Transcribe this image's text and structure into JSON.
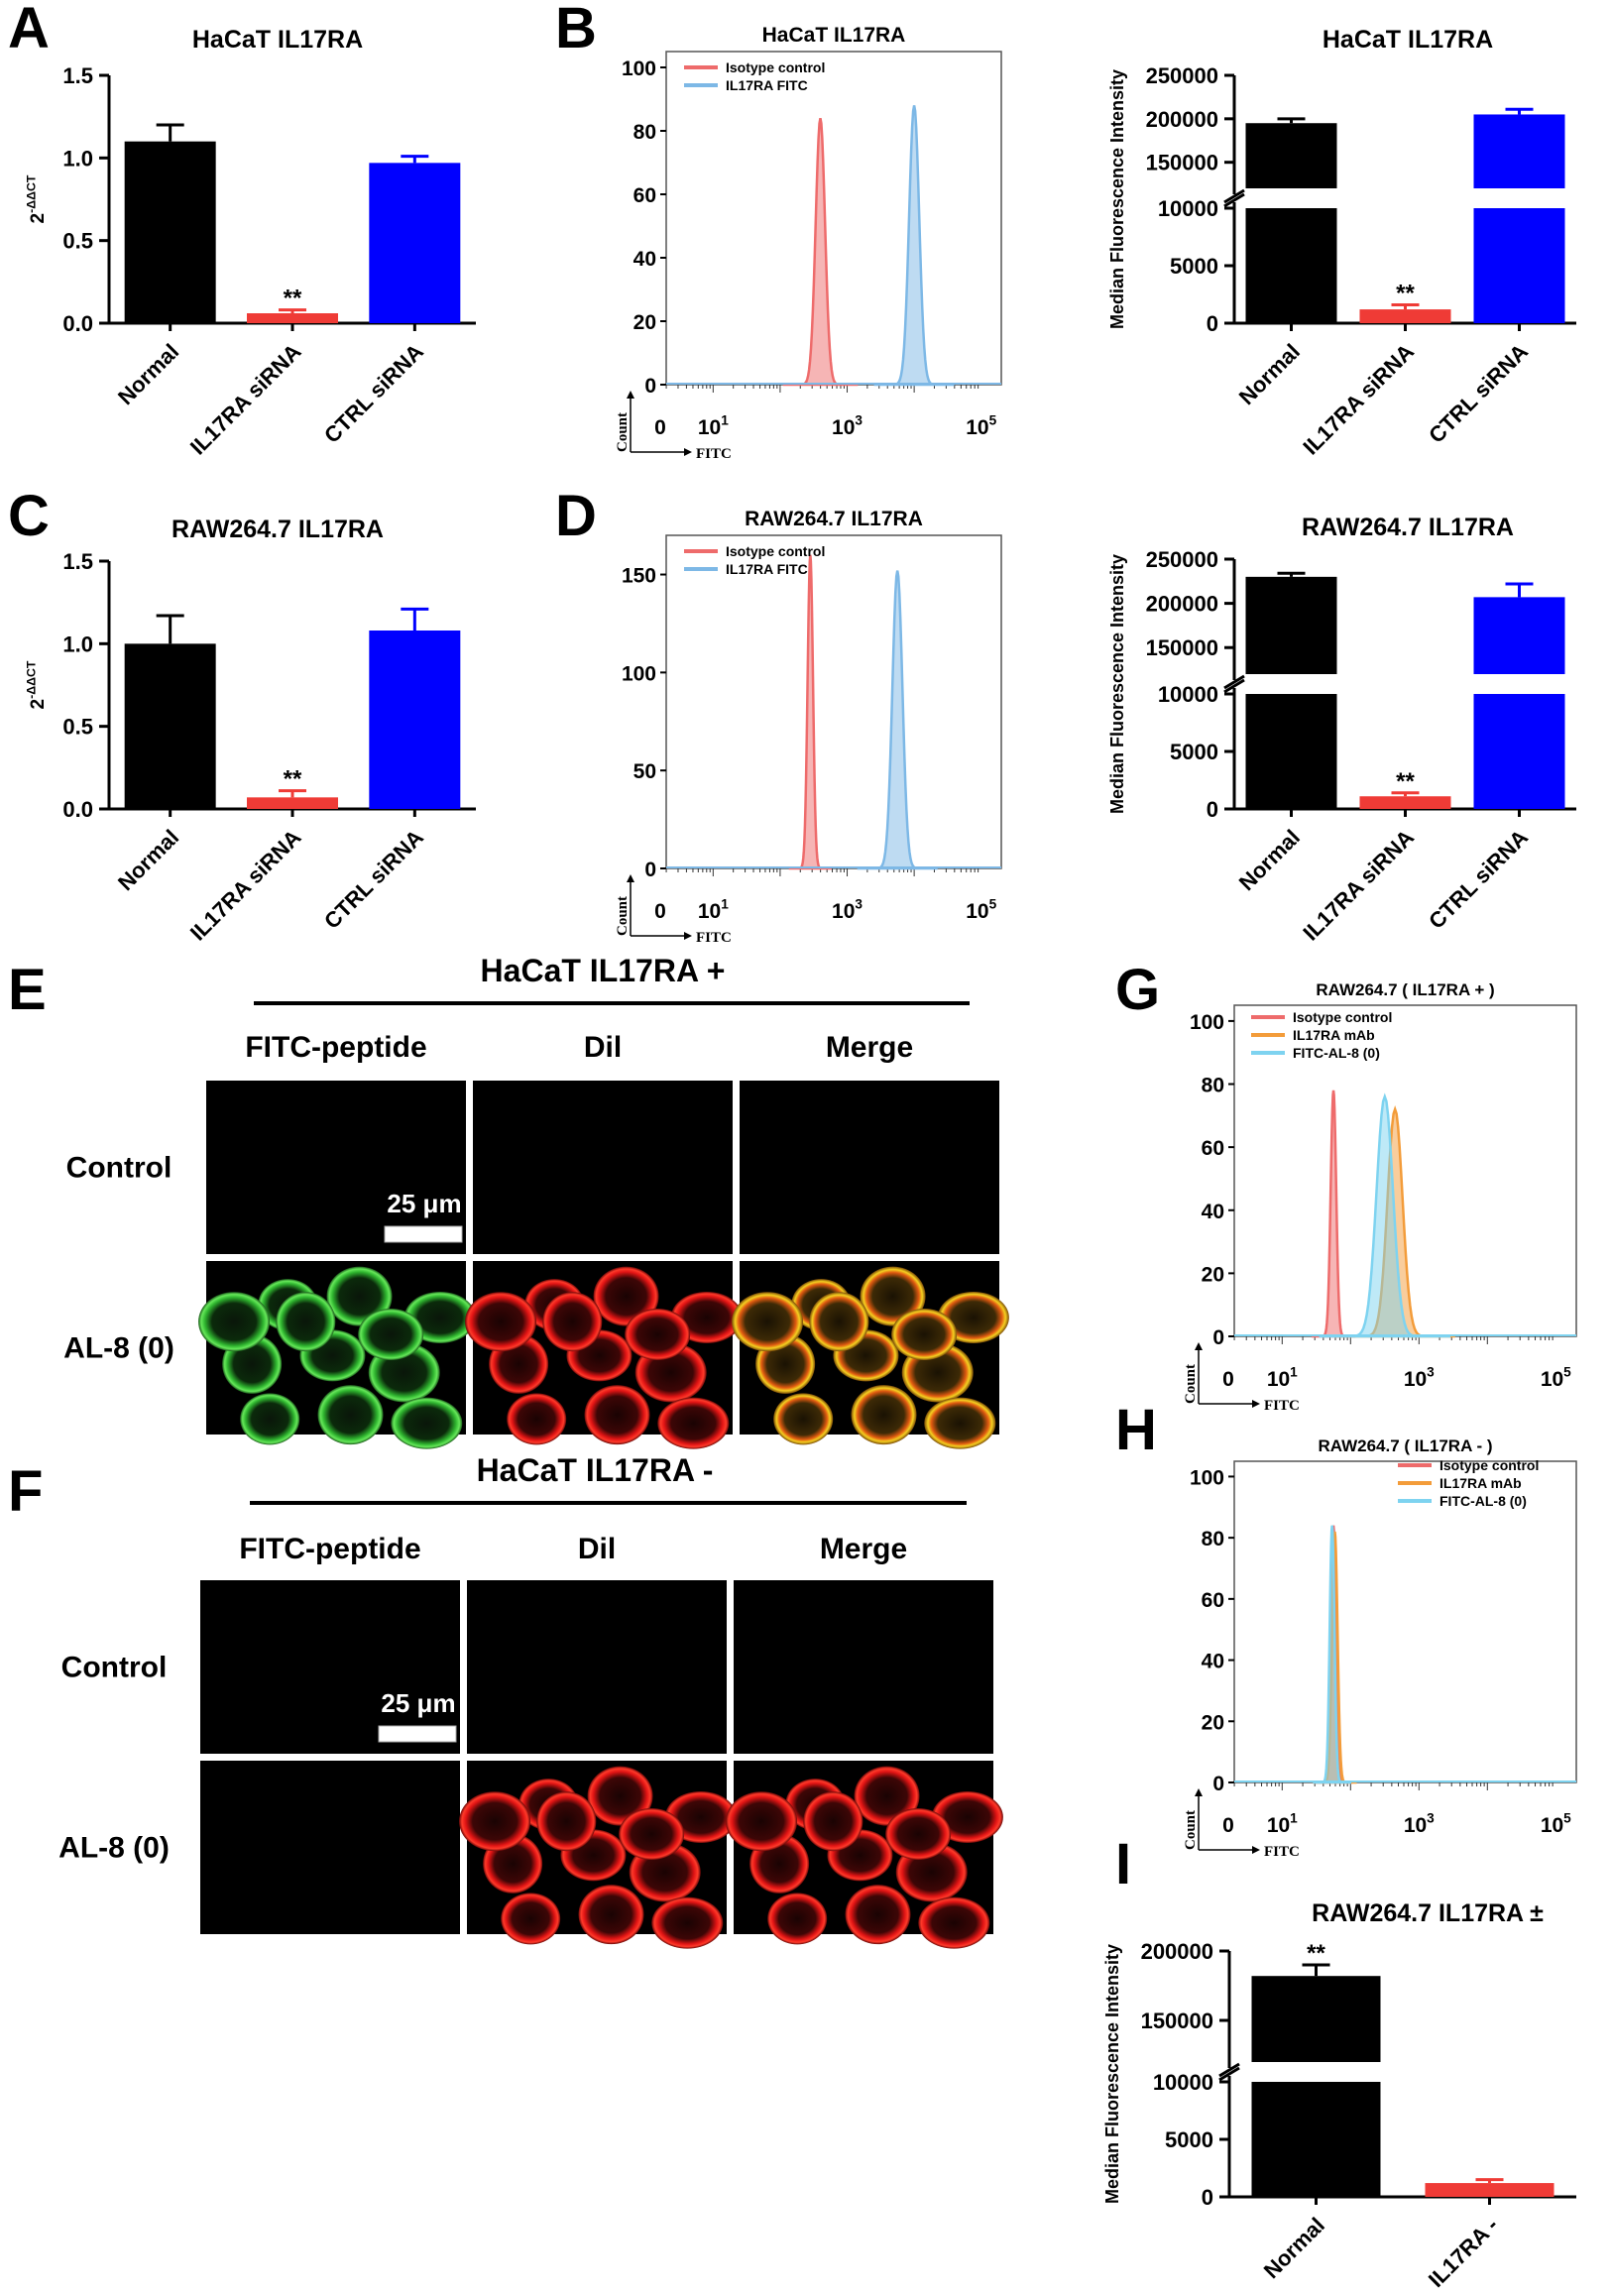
{
  "panels": {
    "A": "A",
    "B": "B",
    "C": "C",
    "D": "D",
    "E": "E",
    "F": "F",
    "G": "G",
    "H": "H",
    "I": "I"
  },
  "chart_data": [
    {
      "id": "A",
      "type": "bar",
      "title": "HaCaT IL17RA",
      "ylabel": "2-ΔΔCT",
      "ylabel_base": "2",
      "ylabel_sup": "-ΔΔCT",
      "categories": [
        "Normal",
        "IL17RA siRNA",
        "CTRL siRNA"
      ],
      "values": [
        1.1,
        0.06,
        0.97
      ],
      "errors": [
        0.1,
        0.02,
        0.04
      ],
      "colors": [
        "#000000",
        "#ef3b36",
        "#0000ff"
      ],
      "ylim": [
        0,
        1.5
      ],
      "yticks": [
        "0.0",
        "0.5",
        "1.0",
        "1.5"
      ],
      "significance": [
        {
          "category": "IL17RA siRNA",
          "label": "**"
        }
      ]
    },
    {
      "id": "B-hist",
      "type": "histogram",
      "title": "HaCaT IL17RA",
      "xlabel": "FITC",
      "ylabel": "Count",
      "yticks": [
        "0",
        "20",
        "40",
        "60",
        "80",
        "100"
      ],
      "ylim": [
        0,
        105
      ],
      "xtick_labels": [
        {
          "base": "0",
          "sup": ""
        },
        {
          "base": "10",
          "sup": "1"
        },
        {
          "base": "10",
          "sup": "3"
        },
        {
          "base": "10",
          "sup": "5"
        }
      ],
      "series": [
        {
          "name": "Isotype control",
          "color": "#ee6b6b",
          "peak_log10": 2.6,
          "peak": 84,
          "width_log10": 0.14
        },
        {
          "name": "IL17RA FITC",
          "color": "#7db8e6",
          "peak_log10": 4.0,
          "peak": 88,
          "width_log10": 0.15
        }
      ]
    },
    {
      "id": "B-bar",
      "type": "bar",
      "title": "HaCaT IL17RA",
      "ylabel": "Median Fluorescence Intensity",
      "categories": [
        "Normal",
        "IL17RA siRNA",
        "CTRL siRNA"
      ],
      "values": [
        195000,
        1200,
        205000
      ],
      "errors": [
        5000,
        400,
        6000
      ],
      "colors": [
        "#000000",
        "#ef3b36",
        "#0000ff"
      ],
      "axis_break": {
        "low": [
          0,
          10000
        ],
        "high": [
          120000,
          250000
        ]
      },
      "yticks": [
        "0",
        "5000",
        "10000",
        "150000",
        "200000",
        "250000"
      ],
      "significance": [
        {
          "category": "IL17RA siRNA",
          "label": "**"
        }
      ]
    },
    {
      "id": "C",
      "type": "bar",
      "title": "RAW264.7 IL17RA",
      "ylabel": "2-ΔΔCT",
      "ylabel_base": "2",
      "ylabel_sup": "-ΔΔCT",
      "categories": [
        "Normal",
        "IL17RA siRNA",
        "CTRL siRNA"
      ],
      "values": [
        1.0,
        0.07,
        1.08
      ],
      "errors": [
        0.17,
        0.04,
        0.13
      ],
      "colors": [
        "#000000",
        "#ef3b36",
        "#0000ff"
      ],
      "ylim": [
        0,
        1.5
      ],
      "yticks": [
        "0.0",
        "0.5",
        "1.0",
        "1.5"
      ],
      "significance": [
        {
          "category": "IL17RA siRNA",
          "label": "**"
        }
      ]
    },
    {
      "id": "D-hist",
      "type": "histogram",
      "title": "RAW264.7 IL17RA",
      "xlabel": "FITC",
      "ylabel": "Count",
      "yticks": [
        "0",
        "50",
        "100",
        "150"
      ],
      "ylim": [
        0,
        170
      ],
      "xtick_labels": [
        {
          "base": "0",
          "sup": ""
        },
        {
          "base": "10",
          "sup": "1"
        },
        {
          "base": "10",
          "sup": "3"
        },
        {
          "base": "10",
          "sup": "5"
        }
      ],
      "series": [
        {
          "name": "Isotype control",
          "color": "#ee6b6b",
          "peak_log10": 2.45,
          "peak": 160,
          "width_log10": 0.08
        },
        {
          "name": "IL17RA FITC",
          "color": "#7db8e6",
          "peak_log10": 3.75,
          "peak": 152,
          "width_log10": 0.15
        }
      ]
    },
    {
      "id": "D-bar",
      "type": "bar",
      "title": "RAW264.7 IL17RA",
      "ylabel": "Median Fluorescence Intensity",
      "categories": [
        "Normal",
        "IL17RA siRNA",
        "CTRL siRNA"
      ],
      "values": [
        230000,
        1100,
        207000
      ],
      "errors": [
        4000,
        300,
        15000
      ],
      "colors": [
        "#000000",
        "#ef3b36",
        "#0000ff"
      ],
      "axis_break": {
        "low": [
          0,
          10000
        ],
        "high": [
          120000,
          250000
        ]
      },
      "yticks": [
        "0",
        "5000",
        "10000",
        "150000",
        "200000",
        "250000"
      ],
      "significance": [
        {
          "category": "IL17RA siRNA",
          "label": "**"
        }
      ]
    },
    {
      "id": "G",
      "type": "histogram",
      "title": "RAW264.7 ( IL17RA + )",
      "xlabel": "FITC",
      "ylabel": "Count",
      "yticks": [
        "0",
        "20",
        "40",
        "60",
        "80",
        "100"
      ],
      "ylim": [
        0,
        105
      ],
      "xtick_labels": [
        {
          "base": "0",
          "sup": ""
        },
        {
          "base": "10",
          "sup": "1"
        },
        {
          "base": "10",
          "sup": "3"
        },
        {
          "base": "10",
          "sup": "5"
        }
      ],
      "series": [
        {
          "name": "Isotype control",
          "color": "#ee6b6b",
          "peak_log10": 1.75,
          "peak": 78,
          "width_log10": 0.08
        },
        {
          "name": "IL17RA mAb",
          "color": "#f39c3a",
          "peak_log10": 2.65,
          "peak": 72,
          "width_log10": 0.22
        },
        {
          "name": "FITC-AL-8 (0)",
          "color": "#7ed3f0",
          "peak_log10": 2.5,
          "peak": 76,
          "width_log10": 0.24
        }
      ]
    },
    {
      "id": "H",
      "type": "histogram",
      "title": "RAW264.7 ( IL17RA - )",
      "xlabel": "FITC",
      "ylabel": "Count",
      "yticks": [
        "0",
        "20",
        "40",
        "60",
        "80",
        "100"
      ],
      "ylim": [
        0,
        105
      ],
      "xtick_labels": [
        {
          "base": "0",
          "sup": ""
        },
        {
          "base": "10",
          "sup": "1"
        },
        {
          "base": "10",
          "sup": "3"
        },
        {
          "base": "10",
          "sup": "5"
        }
      ],
      "series": [
        {
          "name": "Isotype control",
          "color": "#ee6b6b",
          "peak_log10": 1.75,
          "peak": 84,
          "width_log10": 0.07
        },
        {
          "name": "IL17RA mAb",
          "color": "#f39c3a",
          "peak_log10": 1.77,
          "peak": 82,
          "width_log10": 0.08
        },
        {
          "name": "FITC-AL-8 (0)",
          "color": "#7ed3f0",
          "peak_log10": 1.73,
          "peak": 84,
          "width_log10": 0.07
        }
      ]
    },
    {
      "id": "I",
      "type": "bar",
      "title": "RAW264.7 IL17RA ±",
      "ylabel": "Median Fluorescence Intensity",
      "categories": [
        "Normal",
        "IL17RA -"
      ],
      "values": [
        182000,
        1200
      ],
      "errors": [
        8000,
        300
      ],
      "colors": [
        "#000000",
        "#ef3b36"
      ],
      "axis_break": {
        "low": [
          0,
          10000
        ],
        "high": [
          120000,
          200000
        ]
      },
      "yticks": [
        "0",
        "5000",
        "10000",
        "150000",
        "200000"
      ],
      "significance": [
        {
          "category": "Normal",
          "label": "**"
        }
      ]
    }
  ],
  "microscopy": {
    "E": {
      "title": "HaCaT IL17RA +",
      "columns": [
        "FITC-peptide",
        "Dil",
        "Merge"
      ],
      "rows": [
        "Control",
        "AL-8 (0)"
      ],
      "scale_bar": "25 μm"
    },
    "F": {
      "title": "HaCaT IL17RA -",
      "columns": [
        "FITC-peptide",
        "Dil",
        "Merge"
      ],
      "rows": [
        "Control",
        "AL-8 (0)"
      ],
      "scale_bar": "25 μm"
    }
  }
}
